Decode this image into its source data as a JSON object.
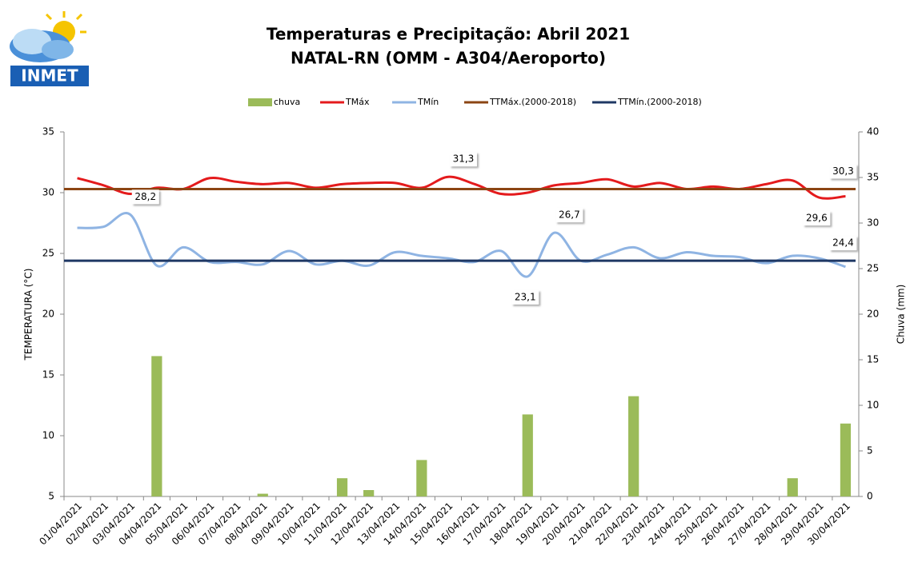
{
  "logo_text": "INMET",
  "chart_data": {
    "type": "combo",
    "title": "Temperaturas e Precipitação: Abril 2021",
    "subtitle": "NATAL-RN (OMM  - A304/Aeroporto)",
    "y_label": "TEMPERATURA (°C)",
    "y2_label": "Chuva (mm)",
    "categories": [
      "01/04/2021",
      "02/04/2021",
      "03/04/2021",
      "04/04/2021",
      "05/04/2021",
      "06/04/2021",
      "07/04/2021",
      "08/04/2021",
      "09/04/2021",
      "10/04/2021",
      "11/04/2021",
      "12/04/2021",
      "13/04/2021",
      "14/04/2021",
      "15/04/2021",
      "16/04/2021",
      "17/04/2021",
      "18/04/2021",
      "19/04/2021",
      "20/04/2021",
      "21/04/2021",
      "22/04/2021",
      "23/04/2021",
      "24/04/2021",
      "25/04/2021",
      "26/04/2021",
      "27/04/2021",
      "28/04/2021",
      "29/04/2021",
      "30/04/2021"
    ],
    "ylim": [
      5,
      35
    ],
    "yticks": [
      5,
      10,
      15,
      20,
      25,
      30,
      35
    ],
    "y2lim": [
      0,
      40
    ],
    "y2ticks": [
      0,
      5,
      10,
      15,
      20,
      25,
      30,
      35,
      40
    ],
    "legend": "top",
    "series": [
      {
        "name": "chuva",
        "type": "bar",
        "axis": "y2",
        "color": "#9bbb59",
        "values": [
          0,
          0,
          0,
          15.4,
          0,
          0,
          0,
          0.3,
          0,
          0,
          2.0,
          0.7,
          0,
          4.0,
          0,
          0,
          0,
          9.0,
          0,
          0,
          0,
          11.0,
          0,
          0,
          0,
          0,
          0,
          2.0,
          0,
          8.0
        ]
      },
      {
        "name": "TMáx",
        "type": "line",
        "color": "#e41a1c",
        "values": [
          31.2,
          30.6,
          29.9,
          30.4,
          30.3,
          31.2,
          30.9,
          30.7,
          30.8,
          30.4,
          30.7,
          30.8,
          30.8,
          30.4,
          31.3,
          30.7,
          29.9,
          30.0,
          30.6,
          30.8,
          31.1,
          30.5,
          30.8,
          30.3,
          30.5,
          30.3,
          30.7,
          31.0,
          29.6,
          29.7
        ],
        "value_labels": [
          null,
          null,
          null,
          null,
          null,
          null,
          null,
          null,
          null,
          null,
          null,
          null,
          null,
          null,
          "31,3",
          null,
          null,
          null,
          null,
          null,
          null,
          null,
          null,
          null,
          null,
          null,
          null,
          null,
          "29,6",
          null
        ]
      },
      {
        "name": "TMín",
        "type": "line",
        "color": "#8fb4e3",
        "values": [
          27.1,
          27.2,
          28.2,
          24.0,
          25.5,
          24.3,
          24.3,
          24.1,
          25.2,
          24.1,
          24.4,
          24.0,
          25.1,
          24.8,
          24.6,
          24.3,
          25.2,
          23.1,
          26.7,
          24.4,
          24.9,
          25.5,
          24.6,
          25.1,
          24.8,
          24.7,
          24.2,
          24.8,
          24.6,
          23.9
        ],
        "value_labels": [
          null,
          null,
          "28,2",
          null,
          null,
          null,
          null,
          null,
          null,
          null,
          null,
          null,
          null,
          null,
          null,
          null,
          null,
          "23,1",
          "26,7",
          null,
          null,
          null,
          null,
          null,
          null,
          null,
          null,
          null,
          null,
          null
        ]
      },
      {
        "name": "TTMáx.(2000-2018)",
        "type": "line",
        "color": "#8b4513",
        "values": [
          30.3,
          30.3,
          30.3,
          30.3,
          30.3,
          30.3,
          30.3,
          30.3,
          30.3,
          30.3,
          30.3,
          30.3,
          30.3,
          30.3,
          30.3,
          30.3,
          30.3,
          30.3,
          30.3,
          30.3,
          30.3,
          30.3,
          30.3,
          30.3,
          30.3,
          30.3,
          30.3,
          30.3,
          30.3,
          30.3
        ],
        "value_labels": [
          null,
          null,
          null,
          null,
          null,
          null,
          null,
          null,
          null,
          null,
          null,
          null,
          null,
          null,
          null,
          null,
          null,
          null,
          null,
          null,
          null,
          null,
          null,
          null,
          null,
          null,
          null,
          null,
          null,
          "30,3"
        ]
      },
      {
        "name": "TTMín.(2000-2018)",
        "type": "line",
        "color": "#1f3864",
        "values": [
          24.4,
          24.4,
          24.4,
          24.4,
          24.4,
          24.4,
          24.4,
          24.4,
          24.4,
          24.4,
          24.4,
          24.4,
          24.4,
          24.4,
          24.4,
          24.4,
          24.4,
          24.4,
          24.4,
          24.4,
          24.4,
          24.4,
          24.4,
          24.4,
          24.4,
          24.4,
          24.4,
          24.4,
          24.4,
          24.4
        ],
        "value_labels": [
          null,
          null,
          null,
          null,
          null,
          null,
          null,
          null,
          null,
          null,
          null,
          null,
          null,
          null,
          null,
          null,
          null,
          null,
          null,
          null,
          null,
          null,
          null,
          null,
          null,
          null,
          null,
          null,
          null,
          "24,4"
        ]
      }
    ]
  }
}
